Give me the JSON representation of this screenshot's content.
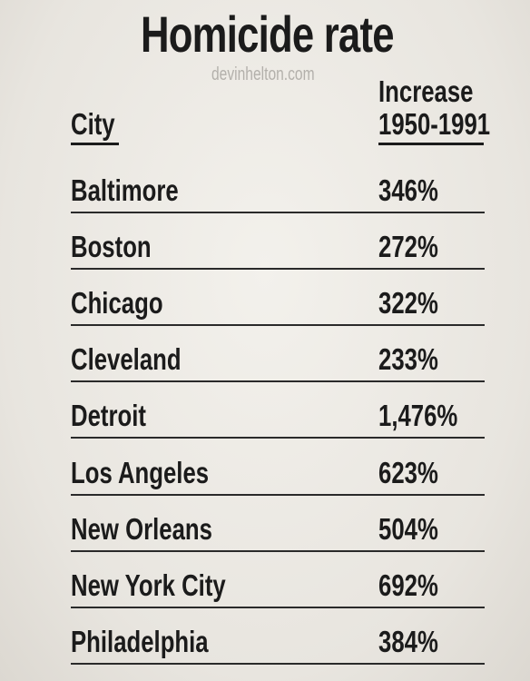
{
  "title": "Homicide rate",
  "source": "devinhelton.com",
  "table": {
    "header": {
      "city": "City",
      "increase": [
        "Increase",
        "1950-1991"
      ]
    },
    "rows": [
      [
        "Baltimore",
        "346%"
      ],
      [
        "Boston",
        "272%"
      ],
      [
        "Chicago",
        "322%"
      ],
      [
        "Cleveland",
        "233%"
      ],
      [
        "Detroit",
        "1,476%"
      ],
      [
        "Los Angeles",
        "623%"
      ],
      [
        "New Orleans",
        "504%"
      ],
      [
        "New York City",
        "692%"
      ],
      [
        "Philadelphia",
        "384%"
      ]
    ]
  }
}
